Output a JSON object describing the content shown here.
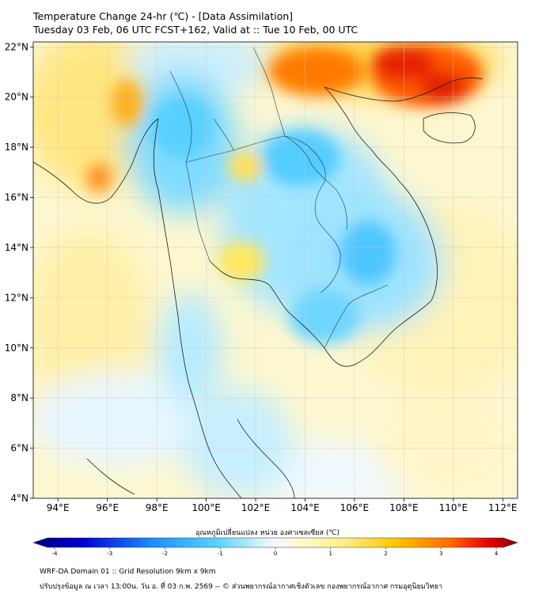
{
  "header": {
    "title": "Temperature Change 24-hr (℃) - [Data Assimilation]",
    "subtitle": "Tuesday 03 Feb, 06 UTC FCST+162, Valid at :: Tue 10 Feb, 00 UTC"
  },
  "map": {
    "lat_labels": [
      "22°N",
      "20°N",
      "18°N",
      "16°N",
      "14°N",
      "12°N",
      "10°N",
      "8°N",
      "6°N",
      "4°N"
    ],
    "lon_labels": [
      "94°E",
      "96°E",
      "98°E",
      "100°E",
      "102°E",
      "104°E",
      "106°E",
      "108°E",
      "110°E",
      "112°E"
    ],
    "lat_values": [
      22,
      20,
      18,
      16,
      14,
      12,
      10,
      8,
      6,
      4
    ],
    "lon_values": [
      94,
      96,
      98,
      100,
      102,
      104,
      106,
      108,
      110,
      112
    ],
    "extent": {
      "lon_min": 93,
      "lon_max": 112.6,
      "lat_min": 4,
      "lat_max": 22.2
    },
    "colors": {
      "cold_max": "#000080",
      "cold": "#1e90ff",
      "cool": "#5ad2ff",
      "neutral": "#f5f5f5",
      "warm": "#fff08c",
      "hot": "#ff8c00",
      "hottest": "#8b0000"
    }
  },
  "colorbar": {
    "title": "อุณหภูมิเปลี่ยนแปลง หน่วย องศาเซลเซียส (℃)",
    "ticks": [
      "-4",
      "-3",
      "-2",
      "-1",
      "0",
      "1",
      "2",
      "3",
      "4"
    ],
    "tick_values": [
      -4,
      -3,
      -2,
      -1,
      0,
      1,
      2,
      3,
      4
    ]
  },
  "footer": {
    "line1": "WRF-DA Domain 01 :: Grid Resolution 9km x 9km",
    "line2": "ปรับปรุงข้อมูล ณ เวลา 13:00น. วัน อ. ที่ 03 ก.พ. 2569 -- © ส่วนพยากรณ์อากาศเชิงตัวเลข กองพยากรณ์อากาศ กรมอุตุนิยมวิทยา"
  }
}
